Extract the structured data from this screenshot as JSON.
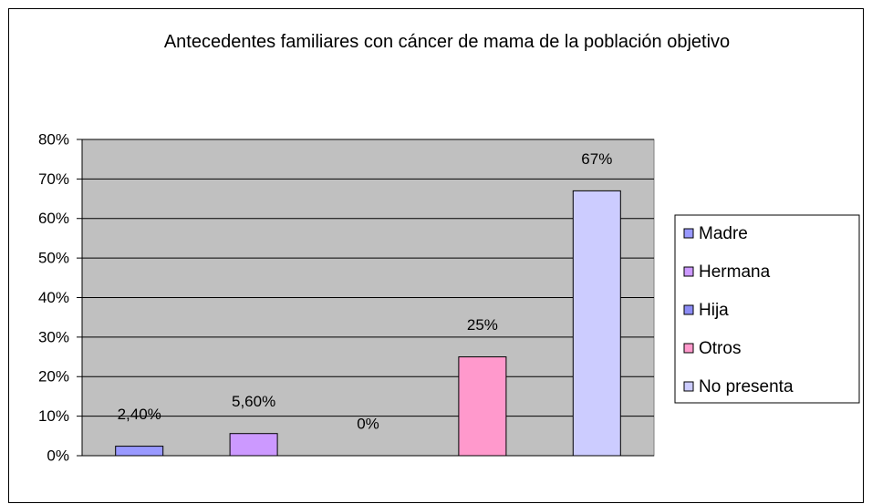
{
  "chart_data": {
    "type": "bar",
    "title": "Antecedentes familiares con cáncer de mama de la población objetivo",
    "series": [
      {
        "name": "Madre",
        "color": "#9999ff",
        "values": [
          2.4
        ],
        "value_labels": [
          "2,40%"
        ]
      },
      {
        "name": "Hermana",
        "color": "#cc99ff",
        "values": [
          5.6
        ],
        "value_labels": [
          "5,60%"
        ]
      },
      {
        "name": "Hija",
        "color": "#8c8cf5",
        "values": [
          0
        ],
        "value_labels": [
          "0%"
        ]
      },
      {
        "name": "Otros",
        "color": "#ff99cc",
        "values": [
          25
        ],
        "value_labels": [
          "25%"
        ]
      },
      {
        "name": "No presenta",
        "color": "#ccccff",
        "values": [
          67
        ],
        "value_labels": [
          "67%"
        ]
      }
    ],
    "ylim": [
      0,
      80
    ],
    "yticks": [
      {
        "value": 0,
        "label": "0%"
      },
      {
        "value": 10,
        "label": "10%"
      },
      {
        "value": 20,
        "label": "20%"
      },
      {
        "value": 30,
        "label": "30%"
      },
      {
        "value": 40,
        "label": "40%"
      },
      {
        "value": 50,
        "label": "50%"
      },
      {
        "value": 60,
        "label": "60%"
      },
      {
        "value": 70,
        "label": "70%"
      },
      {
        "value": 80,
        "label": "80%"
      }
    ],
    "grid": true,
    "plot_background": "#c0c0c0",
    "legend": "right"
  }
}
